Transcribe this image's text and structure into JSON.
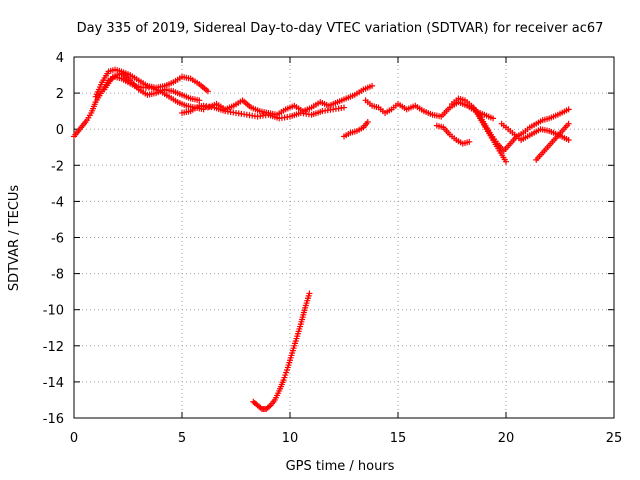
{
  "chart_data": {
    "type": "scatter",
    "title": "Day 335 of 2019, Sidereal Day-to-day VTEC variation (SDTVAR) for receiver ac67",
    "xlabel": "GPS time / hours",
    "ylabel": "SDTVAR / TECUs",
    "xlim": [
      0,
      25
    ],
    "ylim": [
      -16,
      4
    ],
    "xticks": [
      0,
      5,
      10,
      15,
      20,
      25
    ],
    "yticks": [
      4,
      2,
      0,
      -2,
      -4,
      -6,
      -8,
      -10,
      -12,
      -14,
      -16
    ],
    "grid": true,
    "marker": "+",
    "color": "#ff0000",
    "series": [
      {
        "name": "trace-1",
        "x": [
          0.0,
          0.2,
          0.4,
          0.6,
          0.8,
          1.0,
          1.3,
          1.6,
          1.9,
          2.2,
          2.5,
          2.8,
          3.2,
          3.6,
          4.0,
          4.4,
          4.8,
          5.2,
          5.6,
          6.0
        ],
        "y": [
          -0.4,
          -0.1,
          0.2,
          0.5,
          0.9,
          1.5,
          2.1,
          2.7,
          2.9,
          2.8,
          2.6,
          2.4,
          2.3,
          2.3,
          2.1,
          1.8,
          1.5,
          1.3,
          1.2,
          1.1
        ]
      },
      {
        "name": "trace-2",
        "x": [
          1.0,
          1.3,
          1.6,
          1.9,
          2.2,
          2.6,
          3.0,
          3.4,
          3.8,
          4.2,
          4.6,
          5.0,
          5.4,
          5.8,
          6.2
        ],
        "y": [
          1.8,
          2.6,
          3.2,
          3.3,
          3.2,
          3.0,
          2.7,
          2.4,
          2.3,
          2.4,
          2.6,
          2.9,
          2.8,
          2.5,
          2.1
        ]
      },
      {
        "name": "trace-3",
        "x": [
          1.4,
          1.8,
          2.2,
          2.6,
          3.0,
          3.4,
          3.8,
          4.2,
          4.6,
          5.0,
          5.4,
          5.8
        ],
        "y": [
          2.2,
          2.9,
          3.1,
          2.7,
          2.2,
          1.9,
          2.0,
          2.2,
          2.1,
          1.9,
          1.7,
          1.6
        ]
      },
      {
        "name": "trace-4",
        "x": [
          5.0,
          5.4,
          5.8,
          6.2,
          6.6,
          7.0,
          7.4,
          7.8,
          8.2,
          8.6,
          9.0,
          9.4,
          9.8,
          10.2,
          10.6,
          11.0,
          11.4,
          11.8,
          12.2,
          12.6,
          13.0,
          13.4,
          13.8
        ],
        "y": [
          0.9,
          1.0,
          1.3,
          1.2,
          1.4,
          1.1,
          1.3,
          1.6,
          1.2,
          1.0,
          0.9,
          0.8,
          1.1,
          1.3,
          1.0,
          1.2,
          1.5,
          1.3,
          1.5,
          1.7,
          1.9,
          2.2,
          2.4
        ]
      },
      {
        "name": "trace-5",
        "x": [
          6.0,
          6.5,
          7.0,
          7.5,
          8.0,
          8.5,
          9.0,
          9.5,
          10.0,
          10.5,
          11.0,
          11.5,
          12.0,
          12.5
        ],
        "y": [
          1.3,
          1.2,
          1.0,
          0.9,
          0.8,
          0.7,
          0.8,
          0.6,
          0.7,
          0.9,
          0.8,
          1.0,
          1.1,
          1.2
        ]
      },
      {
        "name": "trace-6",
        "x": [
          12.5,
          12.8,
          13.1,
          13.4,
          13.6
        ],
        "y": [
          -0.4,
          -0.2,
          -0.1,
          0.1,
          0.4
        ]
      },
      {
        "name": "trace-7",
        "x": [
          13.5,
          13.8,
          14.1,
          14.4,
          14.7,
          15.0,
          15.4,
          15.8,
          16.2,
          16.6,
          17.0,
          17.4,
          17.8,
          18.2,
          18.6,
          19.0,
          19.4
        ],
        "y": [
          1.6,
          1.3,
          1.2,
          0.9,
          1.1,
          1.4,
          1.1,
          1.3,
          1.0,
          0.8,
          0.7,
          1.2,
          1.5,
          1.3,
          1.0,
          0.8,
          0.6
        ]
      },
      {
        "name": "trace-8",
        "x": [
          16.8,
          17.1,
          17.4,
          17.7,
          18.0,
          18.3
        ],
        "y": [
          0.2,
          0.1,
          -0.3,
          -0.6,
          -0.8,
          -0.7
        ]
      },
      {
        "name": "trace-9",
        "x": [
          17.5,
          17.8,
          18.1,
          18.4,
          18.7,
          19.0,
          19.3,
          19.6,
          19.9,
          20.2,
          20.5,
          20.8,
          21.1,
          21.4,
          21.7,
          22.0,
          22.4,
          22.9
        ],
        "y": [
          1.4,
          1.7,
          1.6,
          1.3,
          0.9,
          0.3,
          -0.3,
          -0.8,
          -1.2,
          -0.8,
          -0.4,
          -0.2,
          0.1,
          0.3,
          0.5,
          0.6,
          0.8,
          1.1
        ]
      },
      {
        "name": "trace-10",
        "x": [
          18.5,
          18.8,
          19.1,
          19.4,
          19.7,
          20.0
        ],
        "y": [
          1.2,
          0.6,
          0.0,
          -0.6,
          -1.2,
          -1.8
        ]
      },
      {
        "name": "trace-11",
        "x": [
          19.8,
          20.1,
          20.4,
          20.7,
          21.0,
          21.3,
          21.6,
          22.0,
          22.4,
          22.9
        ],
        "y": [
          0.3,
          0.0,
          -0.3,
          -0.6,
          -0.4,
          -0.2,
          0.0,
          -0.1,
          -0.3,
          -0.6
        ]
      },
      {
        "name": "trace-12",
        "x": [
          21.4,
          21.7,
          22.0,
          22.3,
          22.6,
          22.9
        ],
        "y": [
          -1.7,
          -1.3,
          -0.9,
          -0.5,
          -0.1,
          0.3
        ]
      },
      {
        "name": "trace-13",
        "x": [
          8.3,
          8.5,
          8.7,
          8.9,
          9.1,
          9.3,
          9.5,
          9.7,
          9.9,
          10.1,
          10.3,
          10.5,
          10.7,
          10.9
        ],
        "y": [
          -15.1,
          -15.3,
          -15.5,
          -15.5,
          -15.3,
          -15.0,
          -14.5,
          -13.9,
          -13.2,
          -12.4,
          -11.6,
          -10.8,
          -9.9,
          -9.1
        ]
      }
    ]
  }
}
